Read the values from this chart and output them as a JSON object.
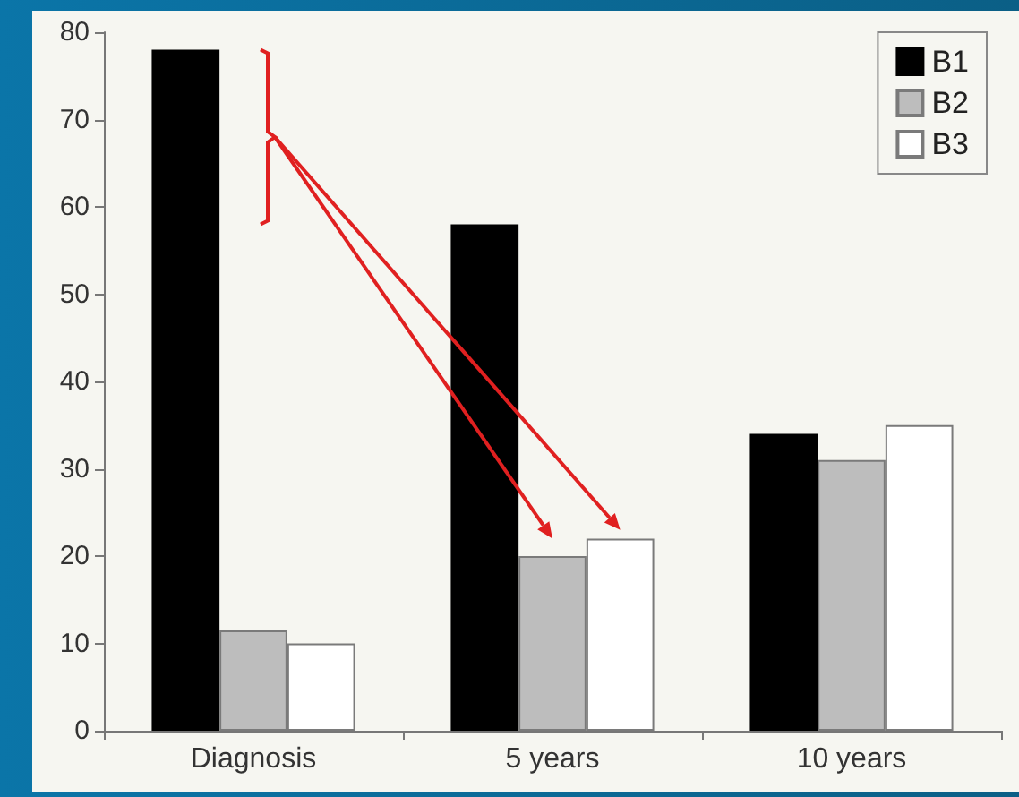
{
  "chart_data": {
    "type": "bar",
    "categories": [
      "Diagnosis",
      "5 years",
      "10 years"
    ],
    "series": [
      {
        "name": "B1",
        "color": "#000000",
        "values": [
          78,
          58,
          34
        ]
      },
      {
        "name": "B2",
        "color": "#bdbdbd",
        "values": [
          11.5,
          20,
          31
        ]
      },
      {
        "name": "B3",
        "color": "#ffffff",
        "values": [
          10,
          22,
          35
        ]
      }
    ],
    "ylim": [
      0,
      80
    ],
    "yticks": [
      0,
      10,
      20,
      30,
      40,
      50,
      60,
      70,
      80
    ],
    "grid": false,
    "legend": "top right"
  }
}
